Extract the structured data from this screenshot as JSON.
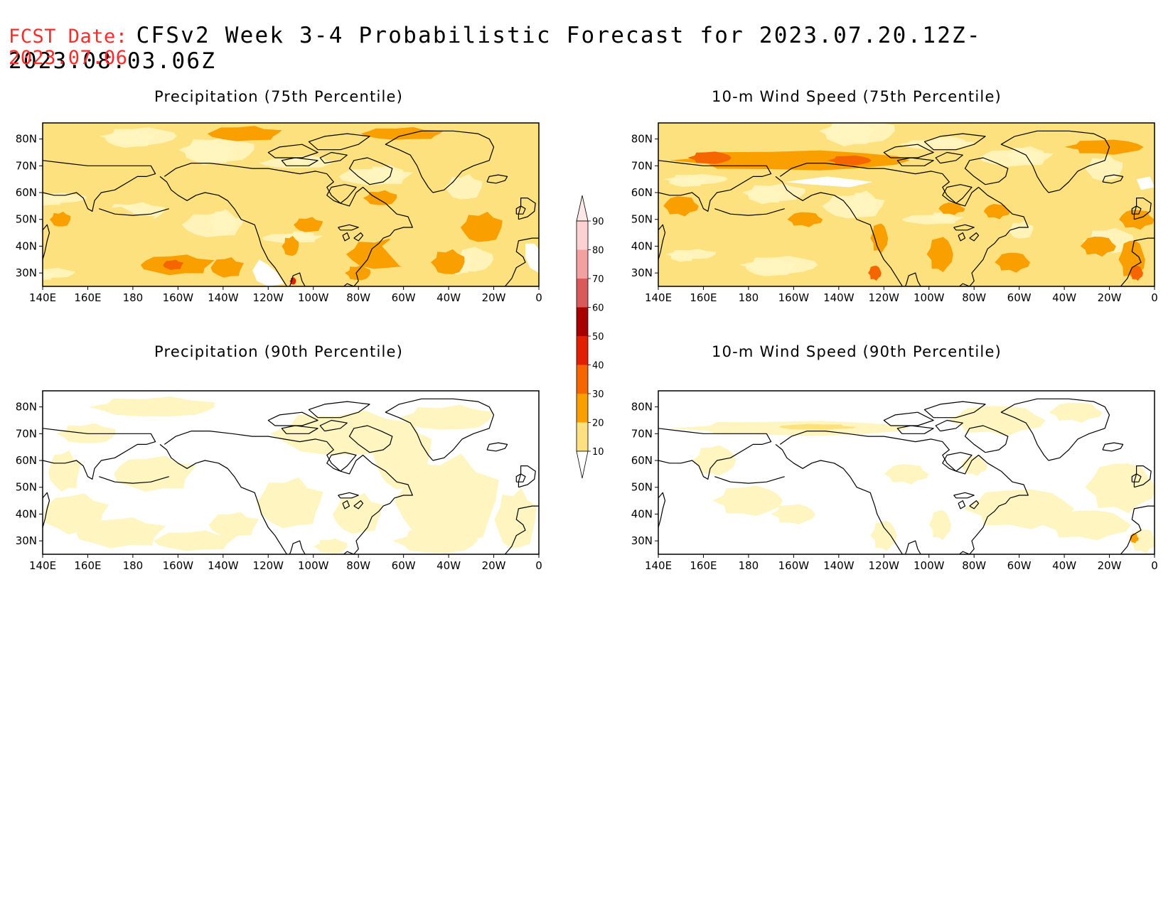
{
  "header": {
    "fcst_label": "FCST Date:",
    "title": "CFSv2 Week 3-4 Probabilistic Forecast for 2023.07.20.12Z-2023.08.03.06Z",
    "fcst_date": "2023.07.06"
  },
  "panels": [
    {
      "id": "precip75",
      "title": "Precipitation (75th Percentile)",
      "intensity": "high",
      "style": "precip"
    },
    {
      "id": "wind75",
      "title": "10-m Wind Speed (75th Percentile)",
      "intensity": "high",
      "style": "wind"
    },
    {
      "id": "precip90",
      "title": "Precipitation (90th Percentile)",
      "intensity": "low",
      "style": "precip"
    },
    {
      "id": "wind90",
      "title": "10-m Wind Speed (90th Percentile)",
      "intensity": "low",
      "style": "wind"
    }
  ],
  "axes": {
    "lon_ticks": [
      "140E",
      "160E",
      "180",
      "160W",
      "140W",
      "120W",
      "100W",
      "80W",
      "60W",
      "40W",
      "20W",
      "0"
    ],
    "lat_ticks": [
      "80N",
      "70N",
      "60N",
      "50N",
      "40N",
      "30N"
    ],
    "lon_range": [
      140,
      360
    ],
    "lat_range": [
      25,
      86
    ]
  },
  "colorbar": {
    "levels": [
      "90",
      "80",
      "70",
      "60",
      "50",
      "40",
      "30",
      "20",
      "10"
    ],
    "colors": [
      "#fbd1d1",
      "#f3a0a3",
      "#d85a5a",
      "#a80000",
      "#e22000",
      "#f56500",
      "#f9a000",
      "#fce17e",
      "#fff5c0"
    ]
  }
}
